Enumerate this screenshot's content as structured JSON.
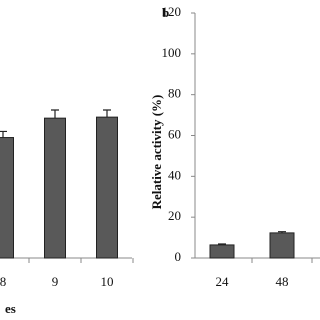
{
  "chart_data": [
    {
      "type": "bar",
      "xlabel": "es",
      "categories": [
        "8",
        "9",
        "10"
      ],
      "values": [
        59,
        68.5,
        69
      ],
      "errors": [
        3,
        4,
        3.5
      ],
      "color": "#595959",
      "ylim": [
        0,
        120
      ]
    },
    {
      "type": "bar",
      "panel_label": "b",
      "ylabel": "Relative activity (%)",
      "categories": [
        "24",
        "48"
      ],
      "values": [
        6.4,
        12.3
      ],
      "errors": [
        0.5,
        0.6
      ],
      "color": "#595959",
      "ylim": [
        0,
        120
      ],
      "yticks": [
        0,
        20,
        40,
        60,
        80,
        100,
        120
      ]
    }
  ]
}
